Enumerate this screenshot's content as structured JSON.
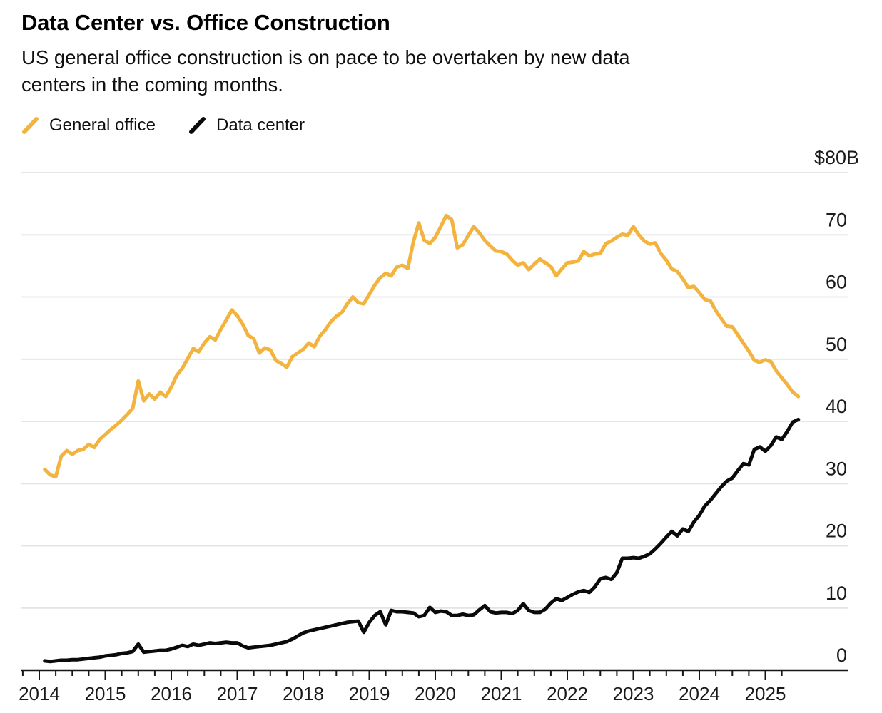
{
  "header": {
    "title": "Data Center vs. Office Construction",
    "subtitle": "US general office construction is on pace to be overtaken by new data centers in the coming months.",
    "subtitle_lines": [
      "US general office construction is on pace to be overtaken by new data",
      "centers in the coming months."
    ]
  },
  "legend": [
    {
      "label": "General office",
      "color": "#F3B43F"
    },
    {
      "label": "Data center",
      "color": "#0A0A0A"
    }
  ],
  "chart_data": {
    "type": "line",
    "title": "Data Center vs. Office Construction",
    "subtitle": "US general office construction is on pace to be overtaken by new data centers in the coming months.",
    "unit": "billions of US dollars",
    "frequency": "monthly",
    "x_start": "2014-02",
    "x_end": "2025-07",
    "grid": "horizontal",
    "legend_position": "top-left",
    "y_axis": {
      "side": "right",
      "ylim": [
        0,
        80
      ],
      "ticks": [
        {
          "value": 80,
          "label": "$80B"
        },
        {
          "value": 70,
          "label": "70"
        },
        {
          "value": 60,
          "label": "60"
        },
        {
          "value": 50,
          "label": "50"
        },
        {
          "value": 40,
          "label": "40"
        },
        {
          "value": 30,
          "label": "30"
        },
        {
          "value": 20,
          "label": "20"
        },
        {
          "value": 10,
          "label": "10"
        },
        {
          "value": 0,
          "label": "0"
        }
      ]
    },
    "x_axis": {
      "tick_labels": [
        "2014",
        "2015",
        "2016",
        "2017",
        "2018",
        "2019",
        "2020",
        "2021",
        "2022",
        "2023",
        "2024",
        "2025"
      ],
      "minor_ticks": "quarterly"
    },
    "style": {
      "grid_color": "#E3E3E3",
      "axis_color": "#161616",
      "tick_label_color": "#1A1A1A",
      "line_width": 5
    },
    "series": [
      {
        "name": "General office",
        "color": "#F3B43F",
        "values": [
          32.3,
          31.4,
          31.1,
          34.4,
          35.3,
          34.7,
          35.3,
          35.5,
          36.3,
          35.8,
          37.1,
          37.9,
          38.7,
          39.4,
          40.2,
          41.1,
          42.1,
          46.5,
          43.3,
          44.4,
          43.6,
          44.7,
          44.0,
          45.5,
          47.4,
          48.5,
          50.1,
          51.7,
          51.2,
          52.6,
          53.6,
          53.1,
          54.8,
          56.3,
          57.9,
          57.0,
          55.6,
          53.8,
          53.3,
          51.0,
          51.8,
          51.5,
          49.8,
          49.3,
          48.7,
          50.4,
          51.0,
          51.6,
          52.6,
          52.0,
          53.7,
          54.7,
          56.0,
          56.9,
          57.5,
          58.9,
          60.0,
          59.1,
          58.9,
          60.4,
          61.9,
          63.1,
          63.8,
          63.4,
          64.8,
          65.1,
          64.6,
          68.8,
          71.9,
          69.1,
          68.6,
          69.6,
          71.3,
          73.1,
          72.4,
          67.9,
          68.4,
          69.9,
          71.3,
          70.3,
          69.1,
          68.2,
          67.4,
          67.3,
          66.9,
          65.9,
          65.1,
          65.5,
          64.4,
          65.3,
          66.1,
          65.5,
          64.9,
          63.4,
          64.5,
          65.5,
          65.6,
          65.8,
          67.3,
          66.6,
          66.9,
          67.0,
          68.6,
          69.0,
          69.6,
          70.1,
          69.9,
          71.3,
          70.0,
          69.0,
          68.5,
          68.7,
          67.0,
          65.9,
          64.5,
          64.1,
          62.9,
          61.5,
          61.7,
          60.7,
          59.6,
          59.4,
          57.8,
          56.5,
          55.3,
          55.2,
          53.9,
          52.6,
          51.3,
          49.8,
          49.5,
          49.9,
          49.6,
          48.1,
          47.0,
          45.9,
          44.7,
          44.0
        ]
      },
      {
        "name": "Data center",
        "color": "#0A0A0A",
        "values": [
          1.5,
          1.4,
          1.5,
          1.6,
          1.6,
          1.7,
          1.7,
          1.8,
          1.9,
          2.0,
          2.1,
          2.3,
          2.4,
          2.5,
          2.7,
          2.8,
          3.0,
          4.2,
          2.9,
          3.0,
          3.1,
          3.2,
          3.2,
          3.4,
          3.7,
          4.0,
          3.8,
          4.2,
          4.0,
          4.2,
          4.4,
          4.3,
          4.4,
          4.5,
          4.4,
          4.4,
          3.9,
          3.6,
          3.7,
          3.8,
          3.9,
          4.0,
          4.2,
          4.4,
          4.6,
          5.0,
          5.5,
          6.0,
          6.3,
          6.5,
          6.7,
          6.9,
          7.1,
          7.3,
          7.5,
          7.7,
          7.8,
          7.9,
          6.1,
          7.7,
          8.8,
          9.4,
          7.3,
          9.6,
          9.4,
          9.4,
          9.3,
          9.2,
          8.6,
          8.8,
          10.1,
          9.3,
          9.5,
          9.4,
          8.8,
          8.8,
          9.0,
          8.8,
          8.9,
          9.7,
          10.4,
          9.4,
          9.2,
          9.3,
          9.3,
          9.1,
          9.6,
          10.7,
          9.6,
          9.3,
          9.3,
          9.8,
          10.8,
          11.5,
          11.2,
          11.7,
          12.2,
          12.6,
          12.8,
          12.5,
          13.4,
          14.7,
          14.9,
          14.6,
          15.7,
          18.0,
          18.0,
          18.1,
          18.0,
          18.3,
          18.7,
          19.5,
          20.4,
          21.4,
          22.3,
          21.6,
          22.7,
          22.3,
          23.8,
          24.9,
          26.4,
          27.3,
          28.4,
          29.5,
          30.4,
          30.9,
          32.1,
          33.2,
          33.0,
          35.5,
          35.9,
          35.2,
          36.1,
          37.5,
          37.1,
          38.4,
          39.9,
          40.3
        ]
      }
    ]
  }
}
